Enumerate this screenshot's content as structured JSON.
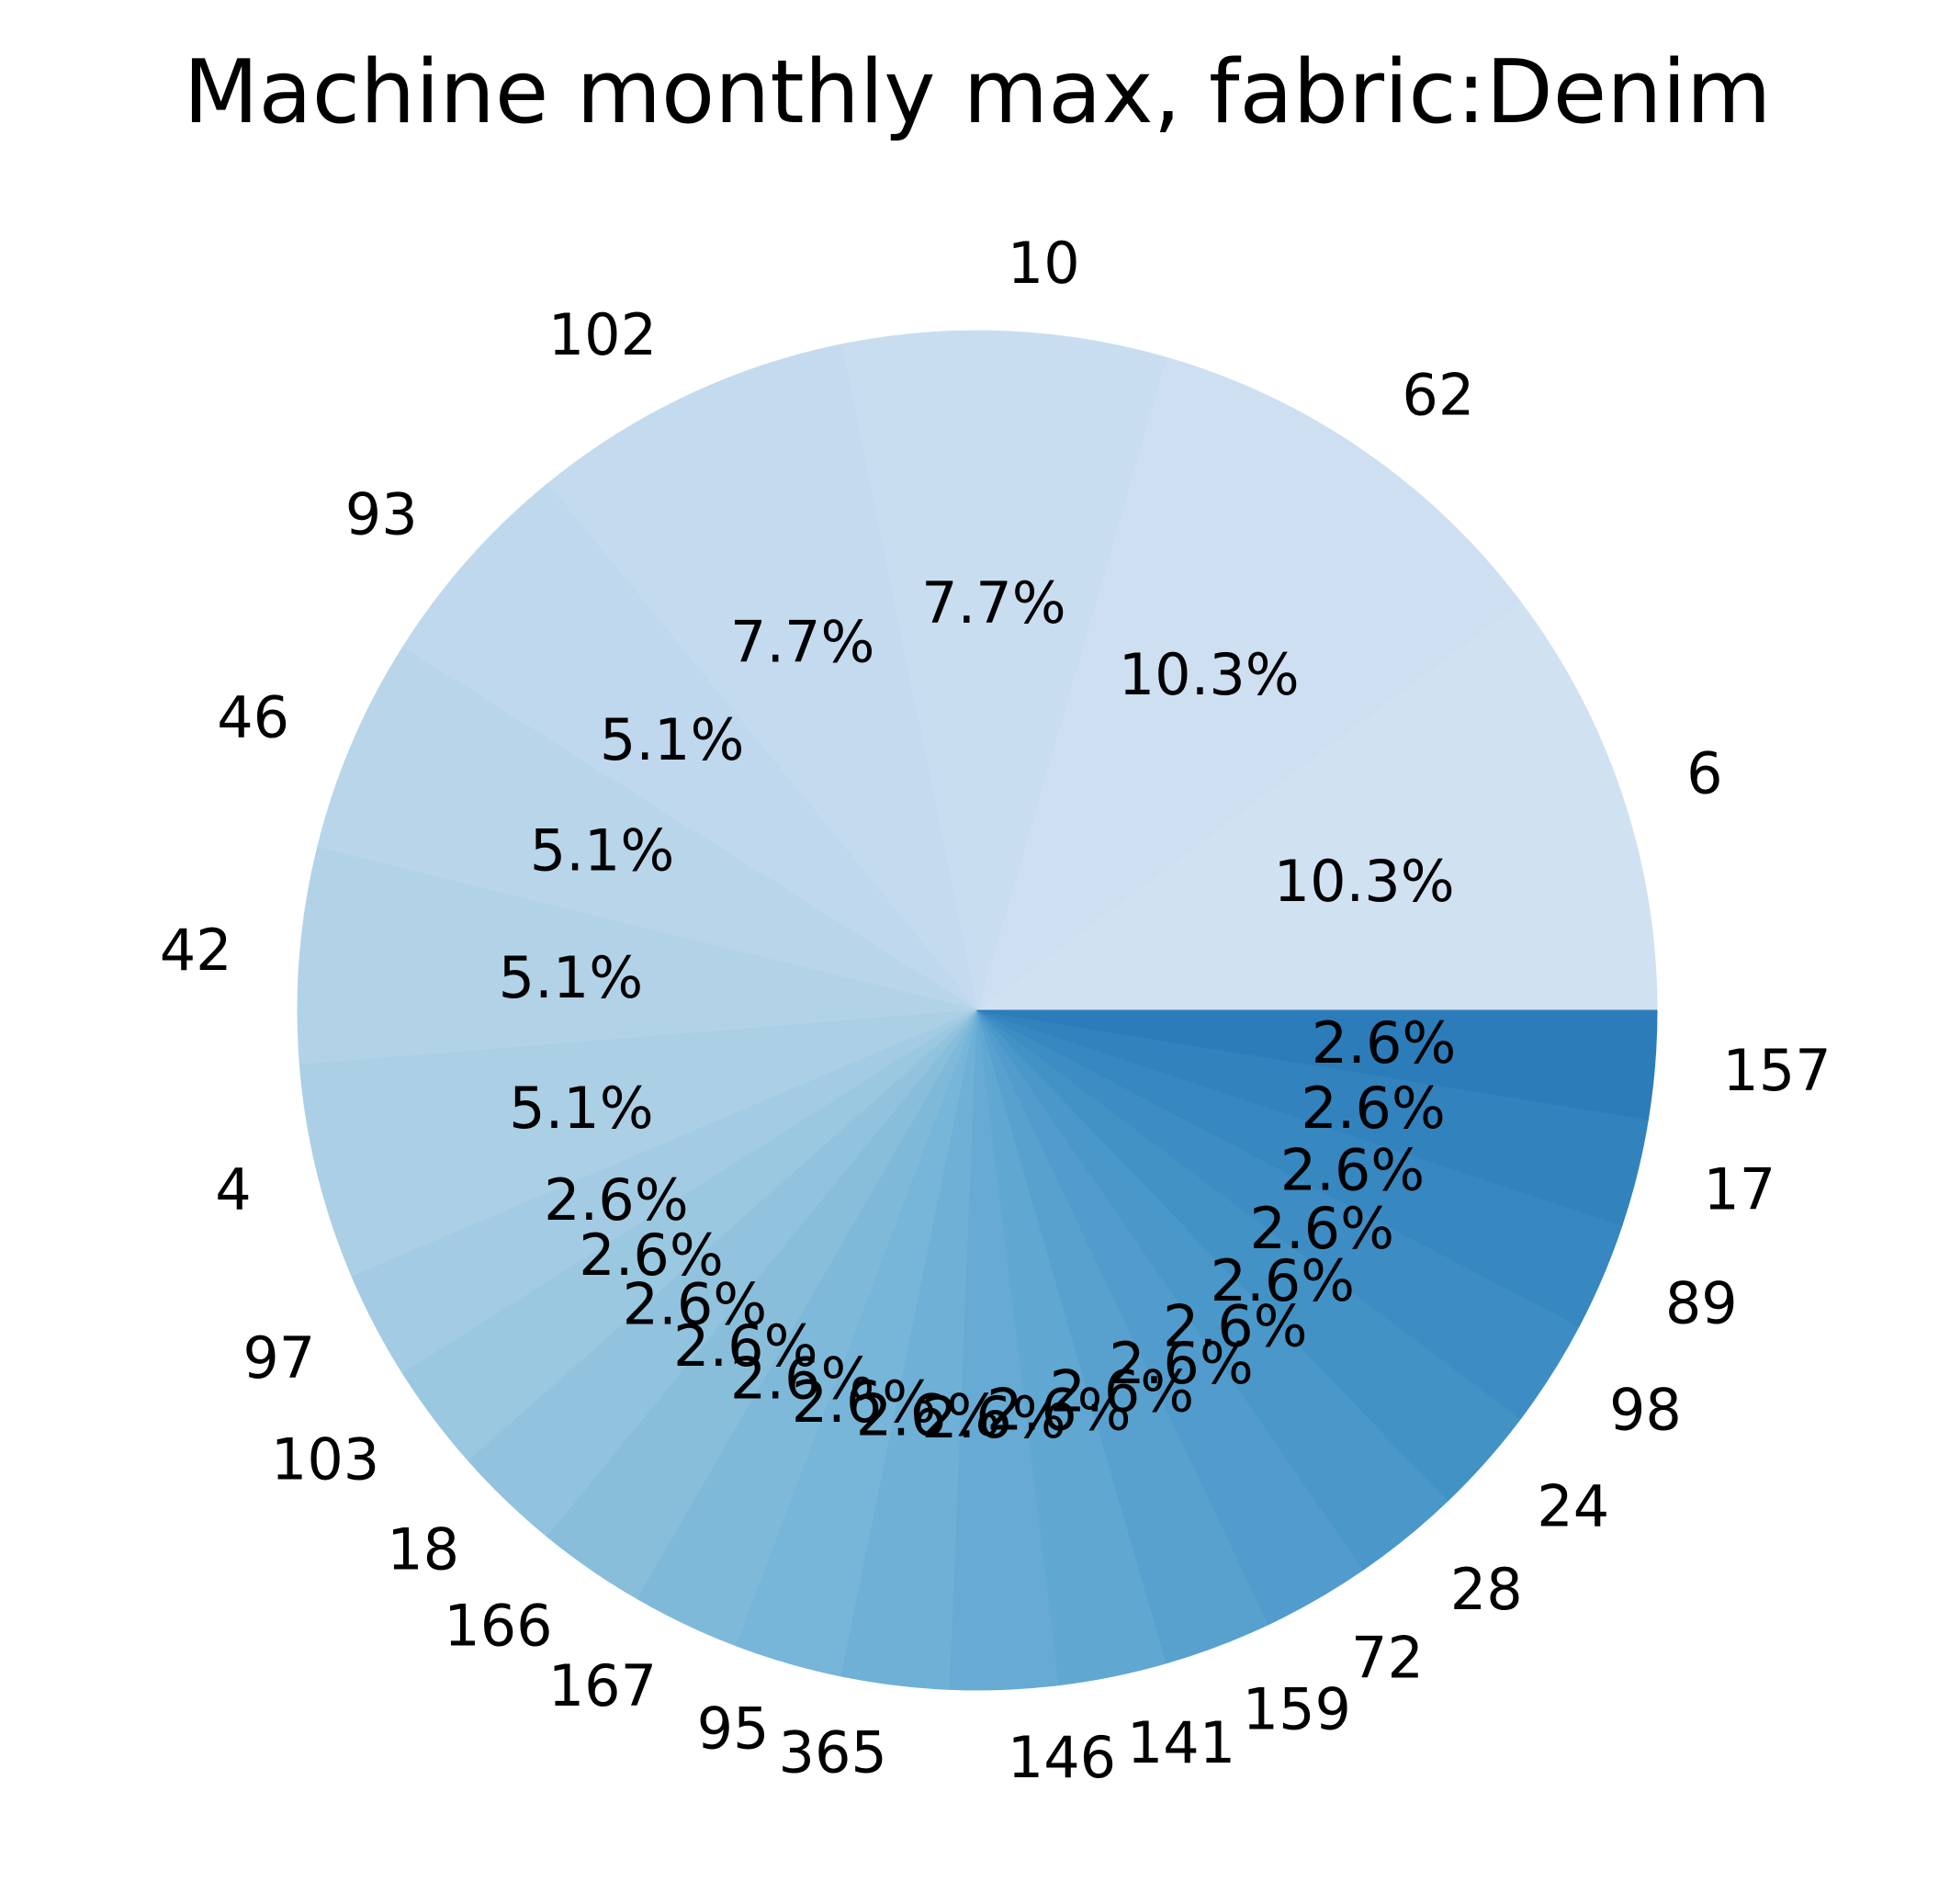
{
  "chart_data": {
    "type": "pie",
    "title": "Machine monthly max, fabric:Denim",
    "start_angle_deg": 0,
    "direction": "counterclockwise",
    "slices": [
      {
        "label": "6",
        "value": 4,
        "pct_label": "10.3%",
        "color": "#d0e1f2"
      },
      {
        "label": "62",
        "value": 4,
        "pct_label": "10.3%",
        "color": "#cddff1"
      },
      {
        "label": "10",
        "value": 3,
        "pct_label": "7.7%",
        "color": "#c9ddf0"
      },
      {
        "label": "102",
        "value": 3,
        "pct_label": "7.7%",
        "color": "#c4daee"
      },
      {
        "label": "93",
        "value": 2,
        "pct_label": "5.1%",
        "color": "#bfd8ed"
      },
      {
        "label": "46",
        "value": 2,
        "pct_label": "5.1%",
        "color": "#b8d5ea"
      },
      {
        "label": "42",
        "value": 2,
        "pct_label": "5.1%",
        "color": "#b2d2e8"
      },
      {
        "label": "4",
        "value": 2,
        "pct_label": "5.1%",
        "color": "#abcfe5"
      },
      {
        "label": "97",
        "value": 1,
        "pct_label": "2.6%",
        "color": "#a3cbe3"
      },
      {
        "label": "103",
        "value": 1,
        "pct_label": "2.6%",
        "color": "#9ac8e0"
      },
      {
        "label": "18",
        "value": 1,
        "pct_label": "2.6%",
        "color": "#91c3de"
      },
      {
        "label": "166",
        "value": 1,
        "pct_label": "2.6%",
        "color": "#88beda"
      },
      {
        "label": "167",
        "value": 1,
        "pct_label": "2.6%",
        "color": "#7fb9da"
      },
      {
        "label": "95",
        "value": 1,
        "pct_label": "2.6%",
        "color": "#77b5d9"
      },
      {
        "label": "365",
        "value": 1,
        "pct_label": "2.6%",
        "color": "#6fb0d7"
      },
      {
        "label": "146",
        "value": 1,
        "pct_label": "2.6%",
        "color": "#67abd4"
      },
      {
        "label": "141",
        "value": 1,
        "pct_label": "2.6%",
        "color": "#60a7d2"
      },
      {
        "label": "159",
        "value": 1,
        "pct_label": "2.6%",
        "color": "#58a1cf"
      },
      {
        "label": "72",
        "value": 1,
        "pct_label": "2.6%",
        "color": "#519ccc"
      },
      {
        "label": "28",
        "value": 1,
        "pct_label": "2.6%",
        "color": "#4a97c9"
      },
      {
        "label": "24",
        "value": 1,
        "pct_label": "2.6%",
        "color": "#4292c6"
      },
      {
        "label": "98",
        "value": 1,
        "pct_label": "2.6%",
        "color": "#3d8dc4"
      },
      {
        "label": "89",
        "value": 1,
        "pct_label": "2.6%",
        "color": "#3787c0"
      },
      {
        "label": "17",
        "value": 1,
        "pct_label": "2.6%",
        "color": "#3282be"
      },
      {
        "label": "157",
        "value": 1,
        "pct_label": "2.6%",
        "color": "#2c7cba"
      }
    ]
  }
}
